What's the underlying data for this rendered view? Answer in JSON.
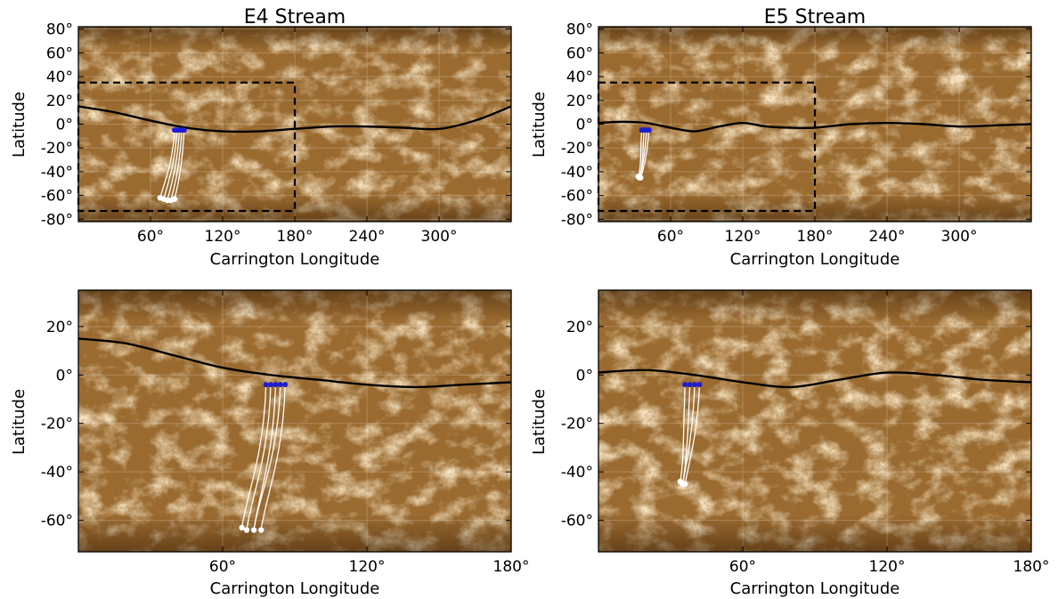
{
  "chart_data": [
    {
      "type": "scatter",
      "title": "E4 Stream",
      "xlabel": "Carrington Longitude",
      "ylabel": "Latitude",
      "xlim": [
        0,
        360
      ],
      "ylim": [
        -82,
        82
      ],
      "xticks": [
        {
          "v": 60,
          "label": "60°"
        },
        {
          "v": 120,
          "label": "120°"
        },
        {
          "v": 180,
          "label": "180°"
        },
        {
          "v": 240,
          "label": "240°"
        },
        {
          "v": 300,
          "label": "300°"
        }
      ],
      "yticks": [
        {
          "v": 80,
          "label": "80°"
        },
        {
          "v": 60,
          "label": "60°"
        },
        {
          "v": 40,
          "label": "40°"
        },
        {
          "v": 20,
          "label": "20°"
        },
        {
          "v": 0,
          "label": "0°"
        },
        {
          "v": -20,
          "label": "-20°"
        },
        {
          "v": -40,
          "label": "-40°"
        },
        {
          "v": -60,
          "label": "-60°"
        },
        {
          "v": -80,
          "label": "-80°"
        }
      ],
      "neutral_line": {
        "x": [
          0,
          30,
          60,
          90,
          120,
          150,
          180,
          210,
          240,
          270,
          300,
          330,
          360
        ],
        "y": [
          15,
          10,
          3,
          -3,
          -6,
          -6,
          -4,
          -2,
          -2,
          -3,
          -4,
          3,
          15
        ]
      },
      "region_box": {
        "x": [
          0,
          180
        ],
        "y": [
          -73,
          35
        ]
      },
      "footpoints": {
        "x": [
          68,
          71,
          74,
          77,
          80
        ],
        "y": [
          -62,
          -63,
          -64,
          -64,
          -63
        ]
      },
      "source_points": {
        "x": [
          80,
          82,
          84,
          86,
          88
        ],
        "y": [
          -5,
          -5,
          -5,
          -5,
          -5
        ]
      }
    },
    {
      "type": "scatter",
      "title": "E5 Stream",
      "xlabel": "Carrington Longitude",
      "ylabel": "Latitude",
      "xlim": [
        0,
        360
      ],
      "ylim": [
        -82,
        82
      ],
      "xticks": [
        {
          "v": 60,
          "label": "60°"
        },
        {
          "v": 120,
          "label": "120°"
        },
        {
          "v": 180,
          "label": "180°"
        },
        {
          "v": 240,
          "label": "240°"
        },
        {
          "v": 300,
          "label": "300°"
        }
      ],
      "yticks": [
        {
          "v": 80,
          "label": "80°"
        },
        {
          "v": 60,
          "label": "60°"
        },
        {
          "v": 40,
          "label": "40°"
        },
        {
          "v": 20,
          "label": "20°"
        },
        {
          "v": 0,
          "label": "0°"
        },
        {
          "v": -20,
          "label": "-20°"
        },
        {
          "v": -40,
          "label": "-40°"
        },
        {
          "v": -60,
          "label": "-60°"
        },
        {
          "v": -80,
          "label": "-80°"
        }
      ],
      "neutral_line": {
        "x": [
          0,
          20,
          40,
          60,
          80,
          100,
          120,
          140,
          160,
          180,
          210,
          240,
          270,
          300,
          330,
          360
        ],
        "y": [
          1,
          2,
          1,
          -3,
          -6,
          -2,
          1,
          -2,
          -3,
          -3,
          0,
          1,
          0,
          -2,
          -1,
          0
        ]
      },
      "region_box": {
        "x": [
          0,
          180
        ],
        "y": [
          -73,
          35
        ]
      },
      "footpoints": {
        "x": [
          33,
          34,
          35
        ],
        "y": [
          -44,
          -45,
          -45
        ]
      },
      "source_points": {
        "x": [
          36,
          38,
          40,
          42
        ],
        "y": [
          -5,
          -5,
          -5,
          -5
        ]
      }
    },
    {
      "type": "scatter",
      "title": "",
      "xlabel": "Carrington Longitude",
      "ylabel": "Latitude",
      "xlim": [
        0,
        180
      ],
      "ylim": [
        -73,
        35
      ],
      "xticks": [
        {
          "v": 60,
          "label": "60°"
        },
        {
          "v": 120,
          "label": "120°"
        },
        {
          "v": 180,
          "label": "180°"
        }
      ],
      "yticks": [
        {
          "v": 20,
          "label": "20°"
        },
        {
          "v": 0,
          "label": "0°"
        },
        {
          "v": -20,
          "label": "-20°"
        },
        {
          "v": -40,
          "label": "-40°"
        },
        {
          "v": -60,
          "label": "-60°"
        }
      ],
      "neutral_line": {
        "x": [
          0,
          20,
          40,
          60,
          80,
          100,
          120,
          140,
          160,
          180
        ],
        "y": [
          15,
          13,
          8,
          3,
          0,
          -2,
          -4,
          -5,
          -4,
          -3
        ]
      },
      "footpoints": {
        "x": [
          68,
          70,
          73,
          76
        ],
        "y": [
          -63,
          -64,
          -64,
          -64
        ]
      },
      "source_points": {
        "x": [
          78,
          80,
          82,
          84,
          86
        ],
        "y": [
          -4,
          -4,
          -4,
          -4,
          -4
        ]
      }
    },
    {
      "type": "scatter",
      "title": "",
      "xlabel": "Carrington Longitude",
      "ylabel": "Latitude",
      "xlim": [
        0,
        180
      ],
      "ylim": [
        -73,
        35
      ],
      "xticks": [
        {
          "v": 60,
          "label": "60°"
        },
        {
          "v": 120,
          "label": "120°"
        },
        {
          "v": 180,
          "label": "180°"
        }
      ],
      "yticks": [
        {
          "v": 20,
          "label": "20°"
        },
        {
          "v": 0,
          "label": "0°"
        },
        {
          "v": -20,
          "label": "-20°"
        },
        {
          "v": -40,
          "label": "-40°"
        },
        {
          "v": -60,
          "label": "-60°"
        }
      ],
      "neutral_line": {
        "x": [
          0,
          20,
          40,
          60,
          80,
          100,
          120,
          140,
          160,
          180
        ],
        "y": [
          1,
          2,
          0,
          -3,
          -5,
          -2,
          1,
          0,
          -2,
          -3
        ]
      },
      "footpoints": {
        "x": [
          34,
          35,
          36
        ],
        "y": [
          -44,
          -45,
          -45
        ]
      },
      "source_points": {
        "x": [
          36,
          38,
          40,
          42
        ],
        "y": [
          -4,
          -4,
          -4,
          -4
        ]
      }
    }
  ],
  "colors": {
    "map_base": "#9a6a2f",
    "map_dark": "#5a3510",
    "map_bright": "#e8c590",
    "neutral_line": "#000000",
    "field_lines": "#ffffff",
    "source_points": "#1f1fd0",
    "region_box": "#000000"
  }
}
